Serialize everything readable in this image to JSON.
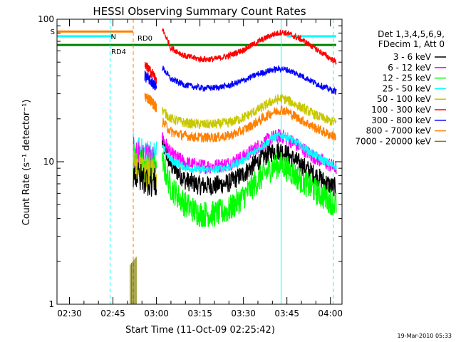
{
  "chart_data": {
    "type": "line",
    "title": "HESSI Observing Summary Count Rates",
    "xlabel": "Start Time (11-Oct-09 02:25:42)",
    "ylabel": "Count Rate (s⁻¹ detector⁻¹)",
    "yscale": "log",
    "ylim": [
      1,
      100
    ],
    "xlim": [
      "02:25:42",
      "04:04:00"
    ],
    "x_ticks": [
      "02:30",
      "02:45",
      "03:00",
      "03:15",
      "03:30",
      "03:45",
      "04:00"
    ],
    "y_ticks": [
      "1",
      "10",
      "100"
    ],
    "legend_title": [
      "Det 1,3,4,5,6,9,",
      "FDecim 1, Att 0"
    ],
    "legend_position": "right",
    "x_unit": "time of day (hh:mm)",
    "series": [
      {
        "name": "3 - 6 keV",
        "color": "#000000",
        "x": [
          "03:02",
          "03:05",
          "03:10",
          "03:15",
          "03:20",
          "03:25",
          "03:30",
          "03:35",
          "03:40",
          "03:43",
          "03:45",
          "03:50",
          "03:55",
          "04:00",
          "04:02"
        ],
        "y": [
          13.5,
          9.5,
          7.4,
          6.8,
          6.8,
          7.1,
          8.2,
          10.0,
          11.8,
          12.0,
          11.3,
          9.5,
          8.0,
          6.8,
          6.6
        ]
      },
      {
        "name": "6 - 12 keV",
        "color": "#ff00ff",
        "x": [
          "03:02",
          "03:05",
          "03:10",
          "03:15",
          "03:20",
          "03:25",
          "03:30",
          "03:35",
          "03:40",
          "03:43",
          "03:45",
          "03:50",
          "03:55",
          "04:00",
          "04:02"
        ],
        "y": [
          14.8,
          11.3,
          9.8,
          9.3,
          9.3,
          9.7,
          10.8,
          12.8,
          14.8,
          15.2,
          14.6,
          12.5,
          10.6,
          9.4,
          9.1
        ]
      },
      {
        "name": "12 - 25 keV",
        "color": "#00ff00",
        "x": [
          "03:02",
          "03:05",
          "03:10",
          "03:15",
          "03:20",
          "03:25",
          "03:30",
          "03:35",
          "03:40",
          "03:43",
          "03:45",
          "03:50",
          "03:55",
          "04:00",
          "04:02"
        ],
        "y": [
          9.8,
          6.6,
          5.0,
          4.3,
          4.3,
          4.6,
          5.7,
          7.4,
          9.2,
          9.6,
          9.0,
          7.4,
          6.2,
          5.3,
          5.0
        ]
      },
      {
        "name": "25 - 50 keV",
        "color": "#00ffff",
        "x": [
          "03:02",
          "03:05",
          "03:10",
          "03:15",
          "03:20",
          "03:25",
          "03:30",
          "03:35",
          "03:40",
          "03:43",
          "03:45",
          "03:50",
          "03:55",
          "04:00",
          "04:02"
        ],
        "y": [
          12.6,
          10.3,
          9.1,
          8.8,
          8.8,
          9.2,
          10.3,
          12.2,
          14.7,
          15.4,
          15.0,
          12.9,
          11.0,
          9.6,
          9.3
        ]
      },
      {
        "name": "50 - 100 keV",
        "color": "#c8c800",
        "x": [
          "03:02",
          "03:05",
          "03:10",
          "03:15",
          "03:20",
          "03:25",
          "03:30",
          "03:35",
          "03:40",
          "03:43",
          "03:45",
          "03:50",
          "03:55",
          "04:00",
          "04:02"
        ],
        "y": [
          23.0,
          20.0,
          18.7,
          18.3,
          18.3,
          18.8,
          20.4,
          23.2,
          26.6,
          27.8,
          27.2,
          24.0,
          21.2,
          19.2,
          18.8
        ]
      },
      {
        "name": "100 - 300 keV",
        "color": "#ff0000",
        "x": [
          "03:02",
          "03:05",
          "03:10",
          "03:15",
          "03:20",
          "03:25",
          "03:30",
          "03:35",
          "03:40",
          "03:43",
          "03:45",
          "03:50",
          "03:55",
          "04:00",
          "04:02"
        ],
        "y": [
          86.0,
          63.0,
          55.0,
          52.5,
          52.5,
          55.5,
          61.0,
          69.5,
          78.0,
          81.0,
          80.0,
          72.0,
          62.0,
          53.0,
          50.0
        ]
      },
      {
        "name": "300 - 800 keV",
        "color": "#0000ff",
        "x": [
          "03:02",
          "03:05",
          "03:10",
          "03:15",
          "03:20",
          "03:25",
          "03:30",
          "03:35",
          "03:40",
          "03:43",
          "03:45",
          "03:50",
          "03:55",
          "04:00",
          "04:02"
        ],
        "y": [
          46.0,
          38.0,
          34.5,
          33.0,
          33.0,
          34.2,
          37.2,
          41.2,
          44.2,
          45.0,
          44.2,
          40.2,
          35.5,
          32.0,
          31.0
        ]
      },
      {
        "name": "800 - 7000 keV",
        "color": "#ff8000",
        "x": [
          "03:02",
          "03:05",
          "03:10",
          "03:15",
          "03:20",
          "03:25",
          "03:30",
          "03:35",
          "03:40",
          "03:43",
          "03:45",
          "03:50",
          "03:55",
          "04:00",
          "04:02"
        ],
        "y": [
          19.2,
          16.2,
          15.2,
          14.8,
          14.8,
          15.2,
          16.6,
          19.2,
          22.2,
          23.2,
          22.6,
          19.6,
          17.2,
          15.4,
          15.0
        ]
      },
      {
        "name": "7000 - 20000 keV",
        "color": "#808000",
        "x": [
          "02:51",
          "02:52",
          "02:53"
        ],
        "y": [
          1.9,
          1.8,
          1.9
        ]
      }
    ],
    "lead_in": {
      "red": {
        "x": [
          "02:56",
          "02:58",
          "03:00"
        ],
        "y": [
          47,
          43,
          38
        ]
      },
      "blue": {
        "x": [
          "02:56",
          "02:58",
          "03:00"
        ],
        "y": [
          40,
          37,
          33
        ]
      },
      "orange": {
        "x": [
          "02:56",
          "02:58",
          "03:00"
        ],
        "y": [
          29,
          27,
          24
        ]
      },
      "flags": {
        "x": [
          "02:52",
          "02:54",
          "02:56",
          "02:58",
          "03:00"
        ],
        "y": [
          16,
          15,
          14.5,
          14,
          13.5
        ]
      }
    },
    "flag_lines": [
      {
        "label": "S",
        "color": "#ff8000",
        "x": [
          "02:25:42",
          "02:52"
        ],
        "y": 82
      },
      {
        "label": "N",
        "color": "#00ffff",
        "x": [
          "02:25:42",
          "02:45"
        ],
        "y": 76
      },
      {
        "label": "N",
        "color": "#00ffff",
        "x": [
          "03:45",
          "04:02"
        ],
        "y": 76
      },
      {
        "label": "RD4",
        "color": "#008000",
        "x": [
          "02:25:42",
          "02:52"
        ],
        "y": 66
      },
      {
        "label": "RD0",
        "color": "#008000",
        "x": [
          "02:52",
          "04:02"
        ],
        "y": 66
      }
    ],
    "vertical_markers": [
      {
        "x": "02:44",
        "color": "#00ffff",
        "style": "dashed"
      },
      {
        "x": "02:52",
        "color": "#ff8000",
        "style": "dashed"
      },
      {
        "x": "03:43",
        "color": "#00ffff",
        "style": "solid"
      },
      {
        "x": "04:01",
        "color": "#00ffff",
        "style": "dashed"
      }
    ],
    "footer_date": "19-Mar-2010 05:33"
  }
}
